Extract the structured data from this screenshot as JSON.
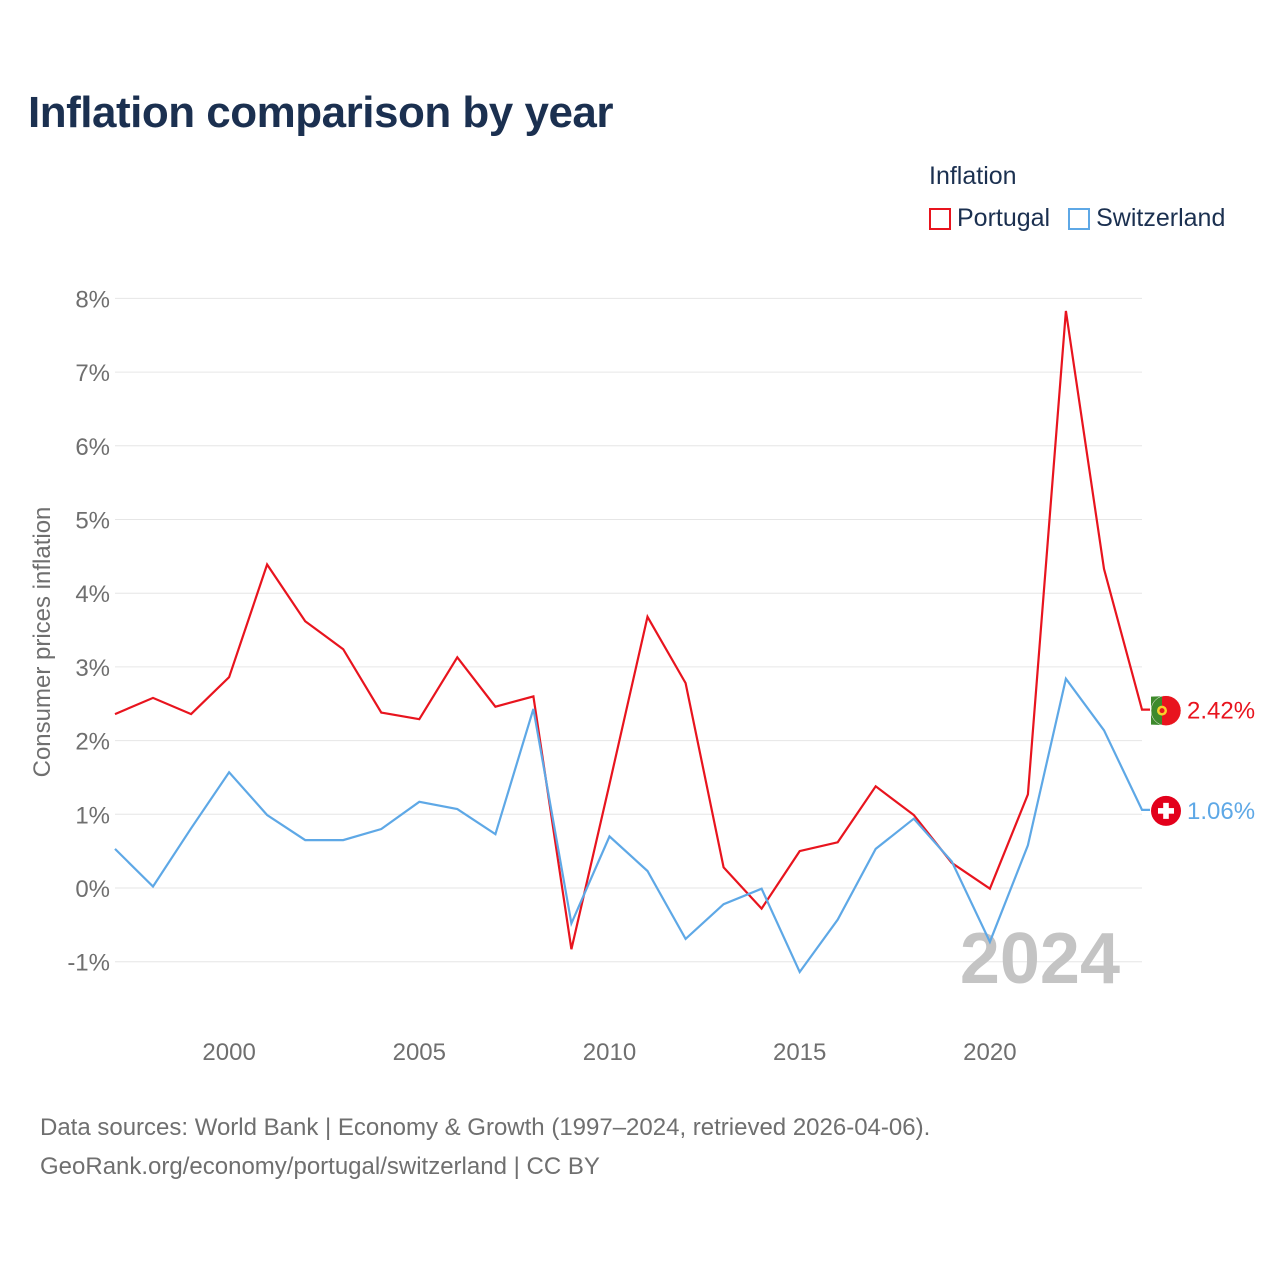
{
  "title": "Inflation comparison by year",
  "legend": {
    "title": "Inflation",
    "items": [
      {
        "label": "Portugal",
        "color": "#e8141e"
      },
      {
        "label": "Switzerland",
        "color": "#5ea8e6"
      }
    ]
  },
  "chart_data": {
    "type": "line",
    "ylabel": "Consumer prices inflation",
    "xlabel": "",
    "ylim": [
      -1.5,
      8
    ],
    "xlim": [
      1997,
      2024
    ],
    "y_ticks": [
      -1,
      0,
      1,
      2,
      3,
      4,
      5,
      6,
      7,
      8
    ],
    "y_tick_labels": [
      "-1%",
      "0%",
      "1%",
      "2%",
      "3%",
      "4%",
      "5%",
      "6%",
      "7%",
      "8%"
    ],
    "x_ticks": [
      2000,
      2005,
      2010,
      2015,
      2020
    ],
    "x_tick_labels": [
      "2000",
      "2005",
      "2010",
      "2015",
      "2020"
    ],
    "grid": true,
    "year_label": "2024",
    "x": [
      1997,
      1998,
      1999,
      2000,
      2001,
      2002,
      2003,
      2004,
      2005,
      2006,
      2007,
      2008,
      2009,
      2010,
      2011,
      2012,
      2013,
      2014,
      2015,
      2016,
      2017,
      2018,
      2019,
      2020,
      2021,
      2022,
      2023,
      2024
    ],
    "series": [
      {
        "name": "Portugal",
        "color": "#e8141e",
        "end_label": "2.42%",
        "values": [
          2.36,
          2.58,
          2.36,
          2.86,
          4.39,
          3.62,
          3.24,
          2.38,
          2.29,
          3.13,
          2.46,
          2.6,
          -0.83,
          1.41,
          3.68,
          2.78,
          0.28,
          -0.28,
          0.5,
          0.62,
          1.38,
          0.99,
          0.34,
          -0.01,
          1.27,
          7.83,
          4.33,
          2.42
        ]
      },
      {
        "name": "Switzerland",
        "color": "#5ea8e6",
        "end_label": "1.06%",
        "values": [
          0.53,
          0.02,
          0.81,
          1.57,
          0.99,
          0.65,
          0.65,
          0.8,
          1.17,
          1.07,
          0.73,
          2.43,
          -0.48,
          0.7,
          0.23,
          -0.69,
          -0.22,
          -0.01,
          -1.14,
          -0.43,
          0.53,
          0.94,
          0.36,
          -0.73,
          0.58,
          2.84,
          2.14,
          1.06
        ]
      }
    ]
  },
  "footer": {
    "line1": "Data sources: World Bank | Economy & Growth (1997–2024, retrieved 2026-04-06).",
    "line2": "GeoRank.org/economy/portugal/switzerland | CC BY"
  }
}
